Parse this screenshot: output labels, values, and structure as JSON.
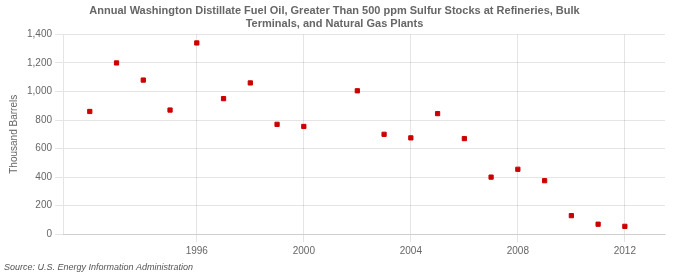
{
  "chart_data": {
    "type": "scatter",
    "title": "Annual Washington Distillate Fuel Oil, Greater Than 500 ppm Sulfur Stocks at Refineries, Bulk\nTerminals, and Natural Gas Plants",
    "y_label": "Thousand Barrels",
    "source": "Source: U.S. Energy Information Administration",
    "x": [
      1992,
      1993,
      1994,
      1995,
      1996,
      1997,
      1998,
      1999,
      2000,
      2002,
      2003,
      2004,
      2005,
      2006,
      2007,
      2008,
      2009,
      2010,
      2011,
      2012
    ],
    "values": [
      860,
      1200,
      1080,
      870,
      1340,
      950,
      1060,
      770,
      755,
      1005,
      700,
      675,
      845,
      670,
      400,
      455,
      375,
      130,
      70,
      55
    ],
    "color": "#cc0000",
    "marker": "square",
    "xlim": [
      1991.0,
      2013.5
    ],
    "ylim": [
      0,
      1400
    ],
    "xticks": [
      1996,
      2000,
      2004,
      2008,
      2012
    ],
    "yticks": [
      0,
      200,
      400,
      600,
      800,
      {
        "value": 1000,
        "label": "1,000"
      },
      {
        "value": 1200,
        "label": "1,200"
      },
      {
        "value": 1400,
        "label": "1,400"
      }
    ],
    "grid": true
  }
}
